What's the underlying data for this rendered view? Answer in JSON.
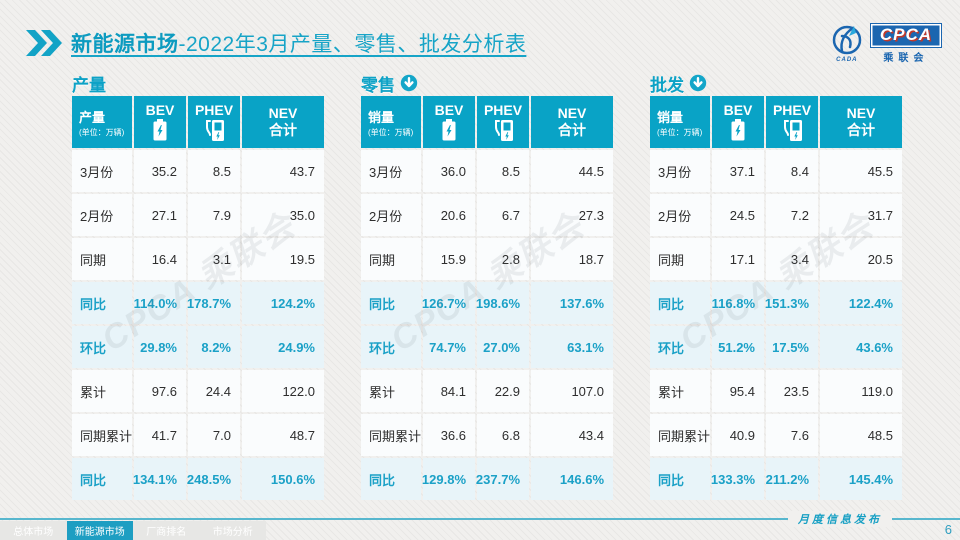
{
  "header": {
    "title_highlight": "新能源市场",
    "title_rest": "-2022年3月产量、零售、批发分析表",
    "logo": {
      "cpca": "CPCA",
      "name": "乘联会",
      "cada": "CADA"
    }
  },
  "watermark": "CPCA 乘联会",
  "tables": [
    {
      "section": "产量",
      "head": {
        "label": "产量",
        "unit": "(单位：万辆)",
        "bev": "BEV",
        "phev": "PHEV",
        "nev_line1": "NEV",
        "nev_line2": "合计"
      },
      "rows": [
        {
          "label": "3月份",
          "bev": "35.2",
          "phev": "8.5",
          "nev": "43.7",
          "highlight": false
        },
        {
          "label": "2月份",
          "bev": "27.1",
          "phev": "7.9",
          "nev": "35.0",
          "highlight": false
        },
        {
          "label": "同期",
          "bev": "16.4",
          "phev": "3.1",
          "nev": "19.5",
          "highlight": false
        },
        {
          "label": "同比",
          "bev": "114.0%",
          "phev": "178.7%",
          "nev": "124.2%",
          "highlight": true
        },
        {
          "label": "环比",
          "bev": "29.8%",
          "phev": "8.2%",
          "nev": "24.9%",
          "highlight": true
        },
        {
          "label": "累计",
          "bev": "97.6",
          "phev": "24.4",
          "nev": "122.0",
          "highlight": false
        },
        {
          "label": "同期累计",
          "bev": "41.7",
          "phev": "7.0",
          "nev": "48.7",
          "highlight": false
        },
        {
          "label": "同比",
          "bev": "134.1%",
          "phev": "248.5%",
          "nev": "150.6%",
          "highlight": true
        }
      ]
    },
    {
      "section": "零售",
      "head": {
        "label": "销量",
        "unit": "(单位：万辆)",
        "bev": "BEV",
        "phev": "PHEV",
        "nev_line1": "NEV",
        "nev_line2": "合计"
      },
      "rows": [
        {
          "label": "3月份",
          "bev": "36.0",
          "phev": "8.5",
          "nev": "44.5",
          "highlight": false
        },
        {
          "label": "2月份",
          "bev": "20.6",
          "phev": "6.7",
          "nev": "27.3",
          "highlight": false
        },
        {
          "label": "同期",
          "bev": "15.9",
          "phev": "2.8",
          "nev": "18.7",
          "highlight": false
        },
        {
          "label": "同比",
          "bev": "126.7%",
          "phev": "198.6%",
          "nev": "137.6%",
          "highlight": true
        },
        {
          "label": "环比",
          "bev": "74.7%",
          "phev": "27.0%",
          "nev": "63.1%",
          "highlight": true
        },
        {
          "label": "累计",
          "bev": "84.1",
          "phev": "22.9",
          "nev": "107.0",
          "highlight": false
        },
        {
          "label": "同期累计",
          "bev": "36.6",
          "phev": "6.8",
          "nev": "43.4",
          "highlight": false
        },
        {
          "label": "同比",
          "bev": "129.8%",
          "phev": "237.7%",
          "nev": "146.6%",
          "highlight": true
        }
      ]
    },
    {
      "section": "批发",
      "head": {
        "label": "销量",
        "unit": "(单位：万辆)",
        "bev": "BEV",
        "phev": "PHEV",
        "nev_line1": "NEV",
        "nev_line2": "合计"
      },
      "rows": [
        {
          "label": "3月份",
          "bev": "37.1",
          "phev": "8.4",
          "nev": "45.5",
          "highlight": false
        },
        {
          "label": "2月份",
          "bev": "24.5",
          "phev": "7.2",
          "nev": "31.7",
          "highlight": false
        },
        {
          "label": "同期",
          "bev": "17.1",
          "phev": "3.4",
          "nev": "20.5",
          "highlight": false
        },
        {
          "label": "同比",
          "bev": "116.8%",
          "phev": "151.3%",
          "nev": "122.4%",
          "highlight": true
        },
        {
          "label": "环比",
          "bev": "51.2%",
          "phev": "17.5%",
          "nev": "43.6%",
          "highlight": true
        },
        {
          "label": "累计",
          "bev": "95.4",
          "phev": "23.5",
          "nev": "119.0",
          "highlight": false
        },
        {
          "label": "同期累计",
          "bev": "40.9",
          "phev": "7.6",
          "nev": "48.5",
          "highlight": false
        },
        {
          "label": "同比",
          "bev": "133.3%",
          "phev": "211.2%",
          "nev": "145.4%",
          "highlight": true
        }
      ]
    }
  ],
  "footer": {
    "tabs": [
      {
        "label": "总体市场"
      },
      {
        "label": "新能源市场"
      },
      {
        "label": "厂商排名"
      },
      {
        "label": "市场分析"
      }
    ],
    "note": "月度信息发布",
    "page": "6"
  },
  "colors": {
    "teal": "#09a3c6",
    "highlight_bg": "#e8f4f9",
    "highlight_text": "#1ba1c7",
    "logo_blue": "#1b66b0"
  }
}
